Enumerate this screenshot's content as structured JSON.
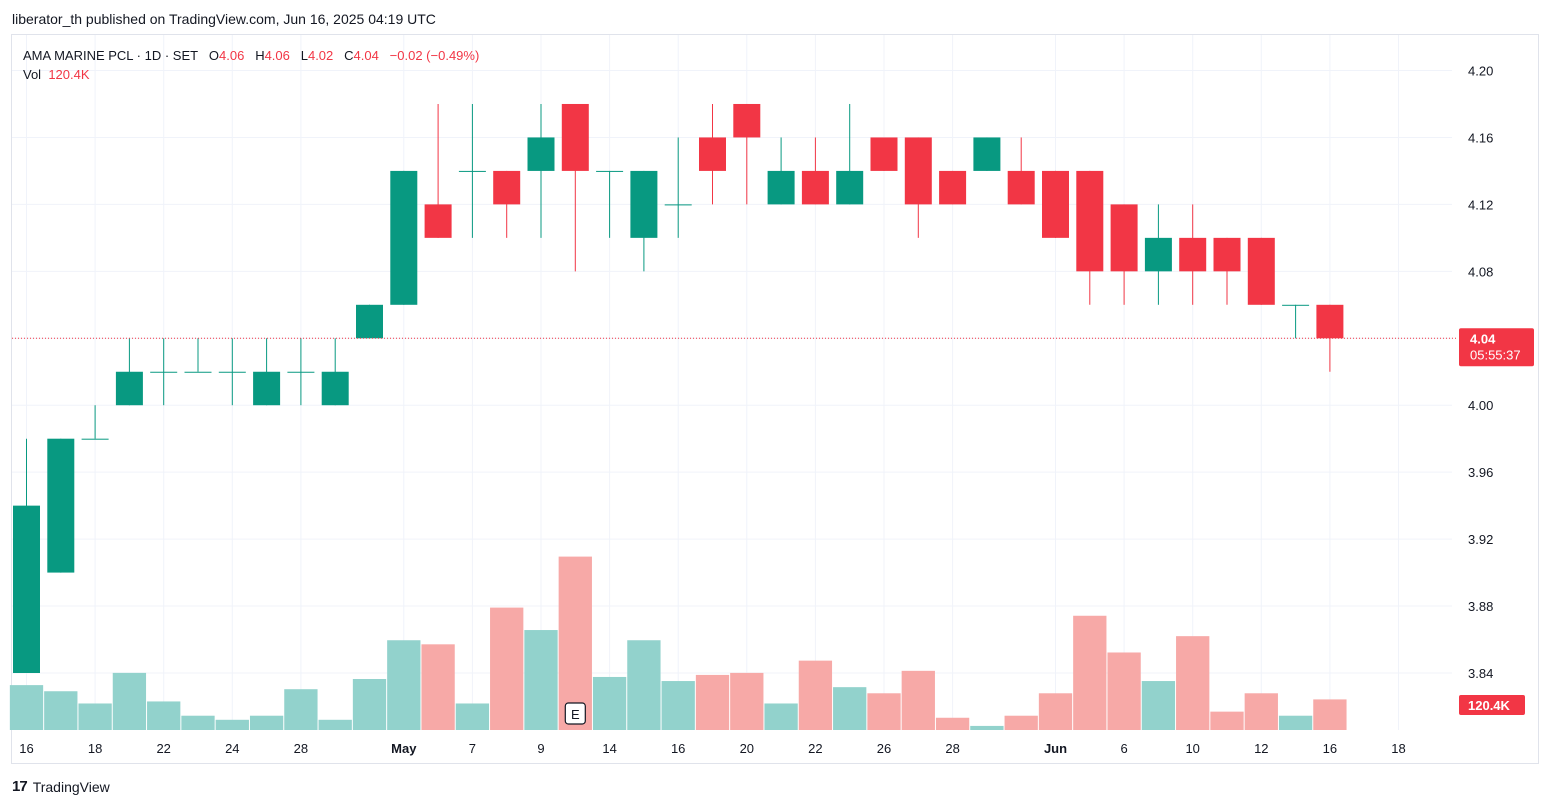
{
  "header": {
    "published_line": "liberator_th published on TradingView.com, Jun 16, 2025 04:19 UTC"
  },
  "legend": {
    "symbol": "AMA MARINE PCL · 1D · SET",
    "o_label": "O",
    "o_value": "4.06",
    "h_label": "H",
    "h_value": "4.06",
    "l_label": "L",
    "l_value": "4.02",
    "c_label": "C",
    "c_value": "4.04",
    "change": "−0.02 (−0.49%)",
    "vol_label": "Vol",
    "vol_value": "120.4K"
  },
  "price_badge": {
    "price": "4.04",
    "countdown": "05:55:37"
  },
  "volume_badge": "120.4K",
  "earnings_marker": "E",
  "footer": {
    "brand": "TradingView",
    "logo_text": "17"
  },
  "colors": {
    "up": "#089981",
    "down": "#f23645",
    "up_vol": "#92d2cc",
    "down_vol": "#f7a9a7"
  },
  "chart_data": {
    "type": "candlestick",
    "ylim": [
      3.82,
      4.22
    ],
    "y_ticks": [
      "4.20",
      "4.16",
      "4.12",
      "4.08",
      "4.04",
      "4.00",
      "3.96",
      "3.92",
      "3.88",
      "3.84"
    ],
    "x_ticks": [
      {
        "label": "16",
        "i": 0
      },
      {
        "label": "18",
        "i": 2
      },
      {
        "label": "22",
        "i": 4
      },
      {
        "label": "24",
        "i": 6
      },
      {
        "label": "28",
        "i": 8
      },
      {
        "label": "May",
        "i": 11
      },
      {
        "label": "7",
        "i": 13
      },
      {
        "label": "9",
        "i": 15
      },
      {
        "label": "14",
        "i": 17
      },
      {
        "label": "16",
        "i": 19
      },
      {
        "label": "20",
        "i": 21
      },
      {
        "label": "22",
        "i": 23
      },
      {
        "label": "26",
        "i": 25
      },
      {
        "label": "28",
        "i": 27
      },
      {
        "label": "Jun",
        "i": 30
      },
      {
        "label": "6",
        "i": 32
      },
      {
        "label": "10",
        "i": 34
      },
      {
        "label": "12",
        "i": 36
      },
      {
        "label": "16",
        "i": 38
      },
      {
        "label": "18",
        "i": 40
      }
    ],
    "earnings_index": 16,
    "candles": [
      {
        "o": 3.84,
        "h": 3.98,
        "l": 3.84,
        "c": 3.94
      },
      {
        "o": 3.9,
        "h": 3.98,
        "l": 3.9,
        "c": 3.98
      },
      {
        "o": 3.98,
        "h": 4.0,
        "l": 3.98,
        "c": 3.98
      },
      {
        "o": 4.0,
        "h": 4.04,
        "l": 4.0,
        "c": 4.02
      },
      {
        "o": 4.02,
        "h": 4.04,
        "l": 4.0,
        "c": 4.02
      },
      {
        "o": 4.02,
        "h": 4.04,
        "l": 4.02,
        "c": 4.02
      },
      {
        "o": 4.02,
        "h": 4.04,
        "l": 4.0,
        "c": 4.02
      },
      {
        "o": 4.0,
        "h": 4.04,
        "l": 4.0,
        "c": 4.02
      },
      {
        "o": 4.02,
        "h": 4.04,
        "l": 4.0,
        "c": 4.02
      },
      {
        "o": 4.0,
        "h": 4.04,
        "l": 4.0,
        "c": 4.02
      },
      {
        "o": 4.04,
        "h": 4.06,
        "l": 4.04,
        "c": 4.06
      },
      {
        "o": 4.06,
        "h": 4.14,
        "l": 4.06,
        "c": 4.14
      },
      {
        "o": 4.12,
        "h": 4.18,
        "l": 4.1,
        "c": 4.1
      },
      {
        "o": 4.14,
        "h": 4.18,
        "l": 4.1,
        "c": 4.14
      },
      {
        "o": 4.14,
        "h": 4.14,
        "l": 4.1,
        "c": 4.12
      },
      {
        "o": 4.14,
        "h": 4.18,
        "l": 4.1,
        "c": 4.16
      },
      {
        "o": 4.18,
        "h": 4.18,
        "l": 4.08,
        "c": 4.14
      },
      {
        "o": 4.14,
        "h": 4.14,
        "l": 4.1,
        "c": 4.14
      },
      {
        "o": 4.1,
        "h": 4.14,
        "l": 4.08,
        "c": 4.14
      },
      {
        "o": 4.12,
        "h": 4.16,
        "l": 4.1,
        "c": 4.12
      },
      {
        "o": 4.16,
        "h": 4.18,
        "l": 4.12,
        "c": 4.14
      },
      {
        "o": 4.18,
        "h": 4.18,
        "l": 4.12,
        "c": 4.16
      },
      {
        "o": 4.12,
        "h": 4.16,
        "l": 4.12,
        "c": 4.14
      },
      {
        "o": 4.14,
        "h": 4.16,
        "l": 4.12,
        "c": 4.12
      },
      {
        "o": 4.12,
        "h": 4.18,
        "l": 4.12,
        "c": 4.14
      },
      {
        "o": 4.16,
        "h": 4.16,
        "l": 4.14,
        "c": 4.14
      },
      {
        "o": 4.16,
        "h": 4.16,
        "l": 4.1,
        "c": 4.12
      },
      {
        "o": 4.14,
        "h": 4.14,
        "l": 4.12,
        "c": 4.12
      },
      {
        "o": 4.14,
        "h": 4.16,
        "l": 4.14,
        "c": 4.16
      },
      {
        "o": 4.14,
        "h": 4.16,
        "l": 4.12,
        "c": 4.12
      },
      {
        "o": 4.14,
        "h": 4.14,
        "l": 4.1,
        "c": 4.1
      },
      {
        "o": 4.14,
        "h": 4.14,
        "l": 4.06,
        "c": 4.08
      },
      {
        "o": 4.12,
        "h": 4.12,
        "l": 4.06,
        "c": 4.08
      },
      {
        "o": 4.08,
        "h": 4.12,
        "l": 4.06,
        "c": 4.1
      },
      {
        "o": 4.1,
        "h": 4.12,
        "l": 4.06,
        "c": 4.08
      },
      {
        "o": 4.1,
        "h": 4.1,
        "l": 4.06,
        "c": 4.08
      },
      {
        "o": 4.1,
        "h": 4.1,
        "l": 4.06,
        "c": 4.06
      },
      {
        "o": 4.06,
        "h": 4.06,
        "l": 4.04,
        "c": 4.06
      },
      {
        "o": 4.06,
        "h": 4.06,
        "l": 4.02,
        "c": 4.04
      }
    ],
    "volume_relative": [
      22,
      19,
      13,
      28,
      14,
      7,
      5,
      7,
      20,
      5,
      25,
      44,
      42,
      13,
      60,
      49,
      85,
      26,
      44,
      24,
      27,
      28,
      13,
      34,
      21,
      18,
      29,
      6,
      2,
      7,
      18,
      56,
      38,
      24,
      46,
      9,
      18,
      7,
      15
    ]
  }
}
